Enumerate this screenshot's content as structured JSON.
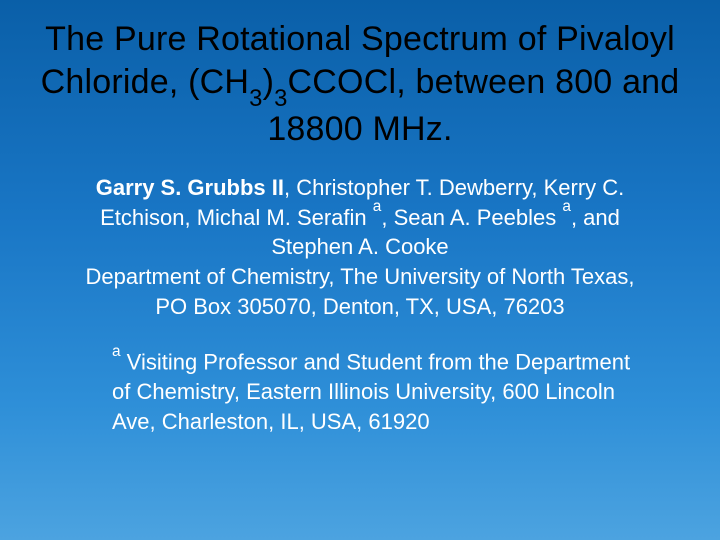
{
  "slide": {
    "background_gradient": [
      "#0a5fa8",
      "#1976c5",
      "#2e8fd8",
      "#4ca3e0"
    ],
    "title_color": "#000000",
    "body_color": "#ffffff",
    "title_fontsize": 34,
    "body_fontsize": 22,
    "title_html": "The Pure Rotational Spectrum of Pivaloyl Chloride, (CH<sub>3</sub>)<sub>3</sub>CCOCl, between 800 and 18800 MHz.",
    "authors_html": "<span class=\"bold\">Garry S. Grubbs II</span>, Christopher T. Dewberry, Kerry C. Etchison, Michal M. Serafin <sup>a</sup>, Sean A. Peebles <sup>a</sup>, and Stephen A. Cooke",
    "affiliation": "Department of Chemistry, The University of North Texas, PO Box 305070, Denton, TX, USA, 76203",
    "footnote_html": "<sup>a</sup> Visiting Professor and Student from the Department of Chemistry, Eastern Illinois University, 600 Lincoln Ave, Charleston, IL, USA, 61920"
  }
}
